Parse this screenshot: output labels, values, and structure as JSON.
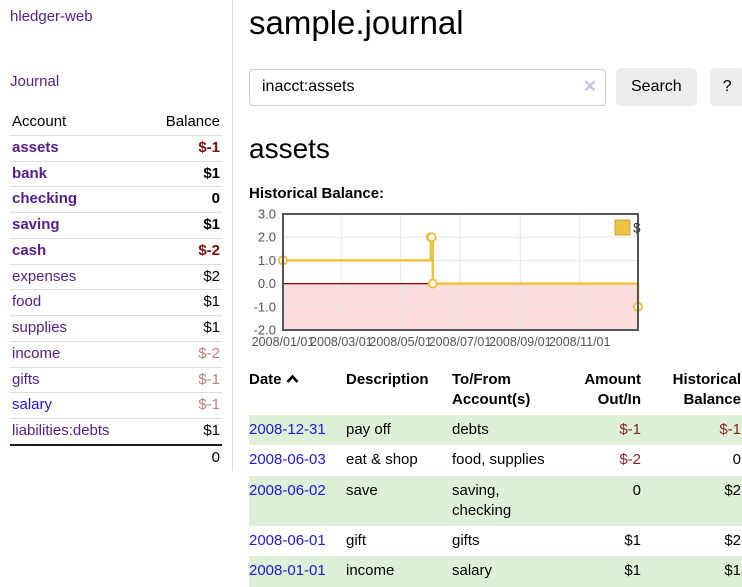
{
  "app": {
    "brand": "hledger-web",
    "nav_journal": "Journal"
  },
  "sidebar": {
    "headers": {
      "account": "Account",
      "balance": "Balance"
    },
    "accounts": [
      {
        "name": "assets",
        "balance": "$-1",
        "depth": 1,
        "selected": true
      },
      {
        "name": "bank",
        "balance": "$1",
        "depth": 2,
        "selected": true
      },
      {
        "name": "checking",
        "balance": "0",
        "depth": 3,
        "selected": true
      },
      {
        "name": "saving",
        "balance": "$1",
        "depth": 3,
        "selected": true
      },
      {
        "name": "cash",
        "balance": "$-2",
        "depth": 2,
        "selected": true
      },
      {
        "name": "expenses",
        "balance": "$2",
        "depth": 1,
        "selected": false
      },
      {
        "name": "food",
        "balance": "$1",
        "depth": 2,
        "selected": false
      },
      {
        "name": "supplies",
        "balance": "$1",
        "depth": 2,
        "selected": false
      },
      {
        "name": "income",
        "balance": "$-2",
        "depth": 1,
        "selected": false
      },
      {
        "name": "gifts",
        "balance": "$-1",
        "depth": 2,
        "selected": false
      },
      {
        "name": "salary",
        "balance": "$-1",
        "depth": 2,
        "selected": false
      },
      {
        "name": "liabilities:debts",
        "balance": "$1",
        "depth": 1,
        "selected": false
      }
    ],
    "total": "0"
  },
  "header": {
    "title": "sample.journal"
  },
  "search": {
    "value": "inacct:assets",
    "clear_icon": "✕",
    "button_label": "Search",
    "help_label": "?"
  },
  "account_page": {
    "heading": "assets",
    "chart_title": "Historical Balance:"
  },
  "chart_data": {
    "type": "line",
    "step": true,
    "title": "Historical Balance",
    "series": [
      {
        "name": "$",
        "color": "#edc240",
        "points": [
          [
            "2008-01-01",
            1
          ],
          [
            "2008-06-01",
            2
          ],
          [
            "2008-06-02",
            2
          ],
          [
            "2008-06-03",
            0
          ],
          [
            "2008-12-31",
            -1
          ]
        ]
      }
    ],
    "x_range": [
      "2008-01-01",
      "2008-12-31"
    ],
    "ylim": [
      -2,
      3
    ],
    "y_ticks": [
      3,
      2,
      1,
      0,
      -1,
      -2
    ],
    "y_tick_labels": [
      "3.0",
      "2.0",
      "1.0",
      "0.0",
      "-1.0",
      "-2.0"
    ],
    "x_ticks": [
      "2008-01-01",
      "2008-03-01",
      "2008-05-01",
      "2008-07-01",
      "2008-09-01",
      "2008-11-01"
    ],
    "x_tick_labels": [
      "2008/01/01",
      "2008/03/01",
      "2008/05/01",
      "2008/07/01",
      "2008/09/01",
      "2008/11/01"
    ],
    "grid": true,
    "negative_region_color": "#fbdcdc",
    "zero_line_color": "#8b0000",
    "border_color": "#545454",
    "legend": {
      "label": "$",
      "position": "top-right"
    }
  },
  "register": {
    "columns": {
      "date": "Date",
      "description": "Description",
      "accounts": "To/From Account(s)",
      "amount": "Amount Out/In",
      "balance": "Historical Balance"
    },
    "rows": [
      {
        "date": "2008-12-31",
        "description": "pay off",
        "accounts": "debts",
        "amount": "$-1",
        "balance": "$-1"
      },
      {
        "date": "2008-06-03",
        "description": "eat & shop",
        "accounts": "food, supplies",
        "amount": "$-2",
        "balance": "0"
      },
      {
        "date": "2008-06-02",
        "description": "save",
        "accounts": "saving, checking",
        "amount": "0",
        "balance": "$2"
      },
      {
        "date": "2008-06-01",
        "description": "gift",
        "accounts": "gifts",
        "amount": "$1",
        "balance": "$2"
      },
      {
        "date": "2008-01-01",
        "description": "income",
        "accounts": "salary",
        "amount": "$1",
        "balance": "$1"
      }
    ]
  }
}
